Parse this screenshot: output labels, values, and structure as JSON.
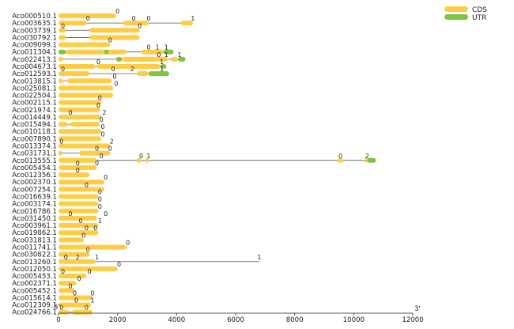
{
  "chart_data": {
    "type": "gene-structure",
    "title": "",
    "x_range": [
      0,
      12000
    ],
    "x_ticks": [
      0,
      2000,
      4000,
      6000,
      8000,
      10000,
      12000
    ],
    "x_end_label": "3'",
    "start_label": "5'",
    "legend": {
      "placement": "top-right",
      "entries": [
        {
          "name": "CDS",
          "color": "#FFCC44"
        },
        {
          "name": "UTR",
          "color": "#80C342"
        }
      ]
    },
    "colors": {
      "cds": "#FFCC44",
      "utr": "#80C342",
      "intron": "#555555"
    },
    "genes": [
      {
        "name": "Aco000510.1",
        "length": 1950,
        "cds": [
          [
            0,
            1950
          ]
        ],
        "utr": [],
        "phases": [
          {
            "x": 2000,
            "label": "0"
          }
        ]
      },
      {
        "name": "Aco003635.1",
        "length": 4550,
        "cds": [
          [
            0,
            950
          ],
          [
            2200,
            3050
          ],
          [
            4150,
            4550
          ]
        ],
        "utr": [],
        "phases": [
          {
            "x": 1000,
            "label": "0"
          },
          {
            "x": 2550,
            "label": "0"
          },
          {
            "x": 3050,
            "label": "0"
          },
          {
            "x": 4550,
            "label": "1"
          }
        ]
      },
      {
        "name": "Aco003739.1",
        "length": 2750,
        "cds": [
          [
            0,
            250
          ],
          [
            1050,
            2750
          ]
        ],
        "utr": [],
        "phases": [
          {
            "x": 150,
            "label": "0"
          },
          {
            "x": 2750,
            "label": "0"
          }
        ]
      },
      {
        "name": "Aco030792.1",
        "length": 2750,
        "cds": [
          [
            0,
            250
          ],
          [
            1050,
            2750
          ]
        ],
        "utr": [],
        "phases": []
      },
      {
        "name": "Aco009099.1",
        "length": 1750,
        "cds": [
          [
            0,
            1750
          ]
        ],
        "utr": [],
        "phases": [
          {
            "x": 1750,
            "label": "0"
          }
        ]
      },
      {
        "name": "Aco011304.1",
        "length": 3900,
        "cds": [
          [
            250,
            2300
          ],
          [
            2800,
            3550
          ]
        ],
        "utr": [
          [
            0,
            250
          ],
          [
            1550,
            1700
          ],
          [
            3550,
            3900
          ]
        ],
        "phases": [
          {
            "x": 3050,
            "label": "0"
          },
          {
            "x": 3350,
            "label": "1"
          },
          {
            "x": 3650,
            "label": "1"
          }
        ]
      },
      {
        "name": "Aco022413.1",
        "length": 4300,
        "cds": [
          [
            0,
            150
          ],
          [
            2150,
            3700
          ],
          [
            3800,
            4050
          ]
        ],
        "utr": [
          [
            1950,
            2150
          ],
          [
            4050,
            4300
          ]
        ],
        "phases": [
          {
            "x": 3400,
            "label": "0"
          },
          {
            "x": 3650,
            "label": "1"
          },
          {
            "x": 4100,
            "label": "1"
          }
        ]
      },
      {
        "name": "Aco004673.1",
        "length": 3650,
        "cds": [
          [
            0,
            1250
          ],
          [
            1300,
            3450
          ]
        ],
        "utr": [
          [
            3450,
            3650
          ]
        ],
        "phases": [
          {
            "x": 1350,
            "label": "0"
          },
          {
            "x": 3500,
            "label": "1"
          }
        ]
      },
      {
        "name": "Aco012593.1",
        "length": 3750,
        "cds": [
          [
            0,
            1050
          ],
          [
            2650,
            3050
          ]
        ],
        "utr": [
          [
            3050,
            3750
          ]
        ],
        "phases": [
          {
            "x": 150,
            "label": "0"
          },
          {
            "x": 1850,
            "label": "0"
          },
          {
            "x": 2500,
            "label": "2"
          },
          {
            "x": 3500,
            "label": "1"
          }
        ]
      },
      {
        "name": "Aco013815.1",
        "length": 1800,
        "cds": [
          [
            0,
            150
          ],
          [
            300,
            1800
          ]
        ],
        "utr": [],
        "phases": [
          {
            "x": 1900,
            "label": "0"
          }
        ]
      },
      {
        "name": "Aco025081.1",
        "length": 1850,
        "cds": [
          [
            0,
            1850
          ]
        ],
        "utr": [],
        "phases": [
          {
            "x": 1950,
            "label": "0"
          }
        ]
      },
      {
        "name": "Aco022504.1",
        "length": 1850,
        "cds": [
          [
            0,
            1850
          ]
        ],
        "utr": [],
        "phases": []
      },
      {
        "name": "Aco002115.1",
        "length": 1450,
        "cds": [
          [
            0,
            1450
          ]
        ],
        "utr": [],
        "phases": [
          {
            "x": 1400,
            "label": "0"
          }
        ]
      },
      {
        "name": "Aco021974.1",
        "length": 1400,
        "cds": [
          [
            0,
            1400
          ]
        ],
        "utr": [],
        "phases": [
          {
            "x": 1350,
            "label": "0"
          }
        ]
      },
      {
        "name": "Aco014449.1",
        "length": 1450,
        "cds": [
          [
            0,
            1450
          ]
        ],
        "utr": [],
        "phases": [
          {
            "x": 400,
            "label": "0"
          },
          {
            "x": 1550,
            "label": "2"
          }
        ]
      },
      {
        "name": "Aco015494.1",
        "length": 1400,
        "cds": [
          [
            0,
            300
          ],
          [
            400,
            1400
          ]
        ],
        "utr": [],
        "phases": [
          {
            "x": 1450,
            "label": "0"
          }
        ]
      },
      {
        "name": "Aco010118.1",
        "length": 1450,
        "cds": [
          [
            0,
            1450
          ]
        ],
        "utr": [],
        "phases": [
          {
            "x": 1500,
            "label": "0"
          }
        ]
      },
      {
        "name": "Aco007890.1",
        "length": 1450,
        "cds": [
          [
            0,
            1450
          ]
        ],
        "utr": [],
        "phases": [
          {
            "x": 1500,
            "label": "0"
          }
        ]
      },
      {
        "name": "Aco013374.1",
        "length": 1750,
        "cds": [
          [
            0,
            1750
          ]
        ],
        "utr": [],
        "phases": [
          {
            "x": 100,
            "label": "0"
          },
          {
            "x": 1800,
            "label": "2"
          }
        ]
      },
      {
        "name": "Aco031731.1",
        "length": 1750,
        "cds": [
          [
            0,
            100
          ],
          [
            700,
            1750
          ]
        ],
        "utr": [],
        "phases": [
          {
            "x": 1300,
            "label": "0"
          },
          {
            "x": 1750,
            "label": "0"
          }
        ]
      },
      {
        "name": "Aco013555.1",
        "length": 10750,
        "cds": [
          [
            0,
            1300
          ],
          [
            2650,
            2800
          ],
          [
            2950,
            3050
          ],
          [
            9450,
            9650
          ],
          [
            10400,
            10450
          ]
        ],
        "utr": [
          [
            10450,
            10750
          ]
        ],
        "phases": [
          {
            "x": 1450,
            "label": "0"
          },
          {
            "x": 2800,
            "label": "0"
          },
          {
            "x": 3050,
            "label": "1"
          },
          {
            "x": 9550,
            "label": "0"
          },
          {
            "x": 10450,
            "label": "2"
          }
        ]
      },
      {
        "name": "Aco005454.1",
        "length": 1300,
        "cds": [
          [
            0,
            1300
          ]
        ],
        "utr": [],
        "phases": [
          {
            "x": 650,
            "label": "0"
          },
          {
            "x": 1300,
            "label": "0"
          }
        ]
      },
      {
        "name": "Aco012356.1",
        "length": 1050,
        "cds": [
          [
            0,
            1050
          ]
        ],
        "utr": [],
        "phases": [
          {
            "x": 650,
            "label": "0"
          }
        ]
      },
      {
        "name": "Aco002370.1",
        "length": 1550,
        "cds": [
          [
            0,
            1550
          ]
        ],
        "utr": [],
        "phases": [
          {
            "x": 1600,
            "label": "0"
          }
        ]
      },
      {
        "name": "Aco007254.1",
        "length": 1550,
        "cds": [
          [
            0,
            1550
          ]
        ],
        "utr": [],
        "phases": [
          {
            "x": 950,
            "label": "0"
          }
        ]
      },
      {
        "name": "Aco016639.1",
        "length": 1350,
        "cds": [
          [
            0,
            1350
          ]
        ],
        "utr": [],
        "phases": [
          {
            "x": 1400,
            "label": "0"
          }
        ]
      },
      {
        "name": "Aco003174.1",
        "length": 1350,
        "cds": [
          [
            0,
            1350
          ]
        ],
        "utr": [],
        "phases": [
          {
            "x": 1400,
            "label": "0"
          }
        ]
      },
      {
        "name": "Aco016786.1",
        "length": 1350,
        "cds": [
          [
            0,
            1350
          ]
        ],
        "utr": [],
        "phases": [
          {
            "x": 1400,
            "label": "0"
          }
        ]
      },
      {
        "name": "Aco031450.1",
        "length": 1300,
        "cds": [
          [
            0,
            1300
          ]
        ],
        "utr": [],
        "phases": [
          {
            "x": 400,
            "label": "0"
          },
          {
            "x": 1600,
            "label": "0"
          }
        ]
      },
      {
        "name": "Aco003961.1",
        "length": 1350,
        "cds": [
          [
            0,
            1350
          ]
        ],
        "utr": [],
        "phases": [
          {
            "x": 750,
            "label": "0"
          },
          {
            "x": 1400,
            "label": "1"
          }
        ]
      },
      {
        "name": "Aco019862.1",
        "length": 1350,
        "cds": [
          [
            0,
            1350
          ]
        ],
        "utr": [],
        "phases": [
          {
            "x": 950,
            "label": "0"
          },
          {
            "x": 1250,
            "label": "0"
          }
        ]
      },
      {
        "name": "Aco031813.1",
        "length": 850,
        "cds": [
          [
            0,
            850
          ]
        ],
        "utr": [],
        "phases": [
          {
            "x": 850,
            "label": "0"
          }
        ]
      },
      {
        "name": "Aco011741.1",
        "length": 2300,
        "cds": [
          [
            0,
            2300
          ]
        ],
        "utr": [],
        "phases": [
          {
            "x": 2350,
            "label": "0"
          }
        ]
      },
      {
        "name": "Aco030822.1",
        "length": 1050,
        "cds": [
          [
            0,
            1050
          ]
        ],
        "utr": [],
        "phases": [
          {
            "x": 1000,
            "label": "0"
          }
        ]
      },
      {
        "name": "Aco013260.1",
        "length": 6800,
        "cds": [
          [
            0,
            1250
          ]
        ],
        "utr": [],
        "phases": [
          {
            "x": 250,
            "label": "0"
          },
          {
            "x": 650,
            "label": "2"
          },
          {
            "x": 1300,
            "label": "1"
          },
          {
            "x": 6800,
            "label": "1"
          }
        ]
      },
      {
        "name": "Aco012050.1",
        "length": 2000,
        "cds": [
          [
            0,
            2000
          ]
        ],
        "utr": [],
        "phases": [
          {
            "x": 2050,
            "label": "0"
          }
        ]
      },
      {
        "name": "Aco005453.1",
        "length": 950,
        "cds": [
          [
            0,
            950
          ]
        ],
        "utr": [],
        "phases": [
          {
            "x": 150,
            "label": "0"
          },
          {
            "x": 1050,
            "label": "0"
          }
        ]
      },
      {
        "name": "Aco002371.1",
        "length": 600,
        "cds": [
          [
            0,
            600
          ]
        ],
        "utr": [],
        "phases": [
          {
            "x": 700,
            "label": "0"
          }
        ]
      },
      {
        "name": "Aco005452.1",
        "length": 550,
        "cds": [
          [
            0,
            550
          ]
        ],
        "utr": [],
        "phases": [
          {
            "x": 400,
            "label": "0"
          }
        ]
      },
      {
        "name": "Aco015614.1",
        "length": 1150,
        "cds": [
          [
            0,
            1150
          ]
        ],
        "utr": [],
        "phases": [
          {
            "x": 550,
            "label": "0"
          },
          {
            "x": 1150,
            "label": "0"
          }
        ]
      },
      {
        "name": "Aco012309.1",
        "length": 1100,
        "cds": [
          [
            0,
            1100
          ]
        ],
        "utr": [],
        "phases": [
          {
            "x": 600,
            "label": "0"
          },
          {
            "x": 1150,
            "label": "1"
          }
        ]
      },
      {
        "name": "Aco024766.1",
        "length": 1150,
        "cds": [
          [
            0,
            350
          ],
          [
            450,
            1150
          ]
        ],
        "utr": [],
        "phases": [
          {
            "x": 100,
            "label": "0"
          },
          {
            "x": 950,
            "label": "0"
          }
        ]
      }
    ]
  }
}
